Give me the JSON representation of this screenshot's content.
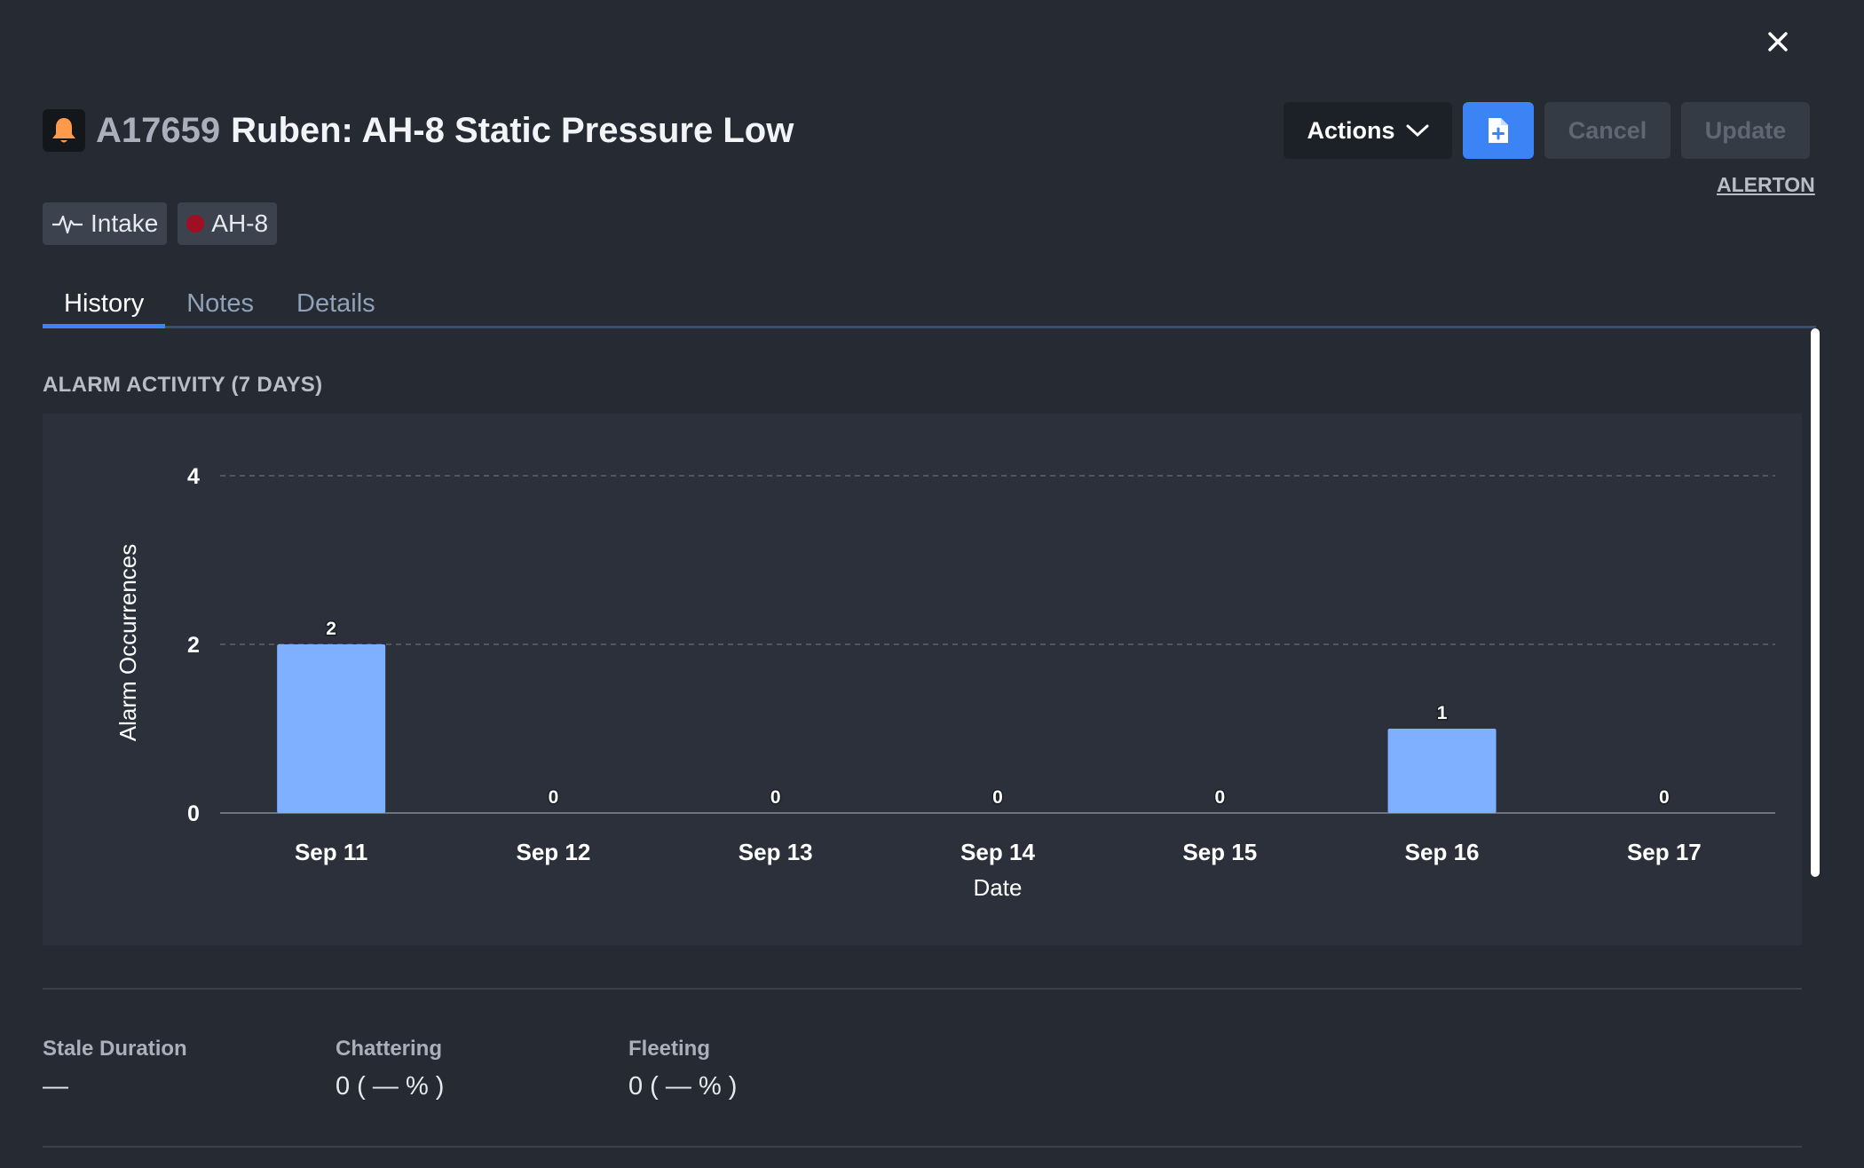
{
  "header": {
    "alarm_id": "A17659",
    "title": "Ruben: AH-8 Static Pressure Low",
    "icon": "bell-icon"
  },
  "toolbar": {
    "actions_label": "Actions",
    "add_note_icon": "file-plus-icon",
    "cancel_label": "Cancel",
    "update_label": "Update",
    "link_label": "ALERTON"
  },
  "chips": [
    {
      "label": "Intake",
      "icon": "pulse-icon"
    },
    {
      "label": "AH-8",
      "icon": "status-dot-icon",
      "color": "#9e0f24"
    }
  ],
  "tabs": [
    {
      "label": "History",
      "active": true
    },
    {
      "label": "Notes",
      "active": false
    },
    {
      "label": "Details",
      "active": false
    }
  ],
  "section_title": "ALARM ACTIVITY (7 DAYS)",
  "chart_data": {
    "type": "bar",
    "categories": [
      "Sep 11",
      "Sep 12",
      "Sep 13",
      "Sep 14",
      "Sep 15",
      "Sep 16",
      "Sep 17"
    ],
    "values": [
      2,
      0,
      0,
      0,
      0,
      1,
      0
    ],
    "xlabel": "Date",
    "ylabel": "Alarm Occurrences",
    "ylim": [
      0,
      4
    ],
    "yticks": [
      0,
      2,
      4
    ],
    "grid": true,
    "bar_color": "#7fb0ff",
    "data_labels": true
  },
  "stats": [
    {
      "label": "Stale Duration",
      "value": "—"
    },
    {
      "label": "Chattering",
      "value": "0 ( — % )"
    },
    {
      "label": "Fleeting",
      "value": "0 ( — % )"
    }
  ],
  "colors": {
    "background": "#252a33",
    "accent": "#3c84f6",
    "bar": "#7fb0ff"
  }
}
